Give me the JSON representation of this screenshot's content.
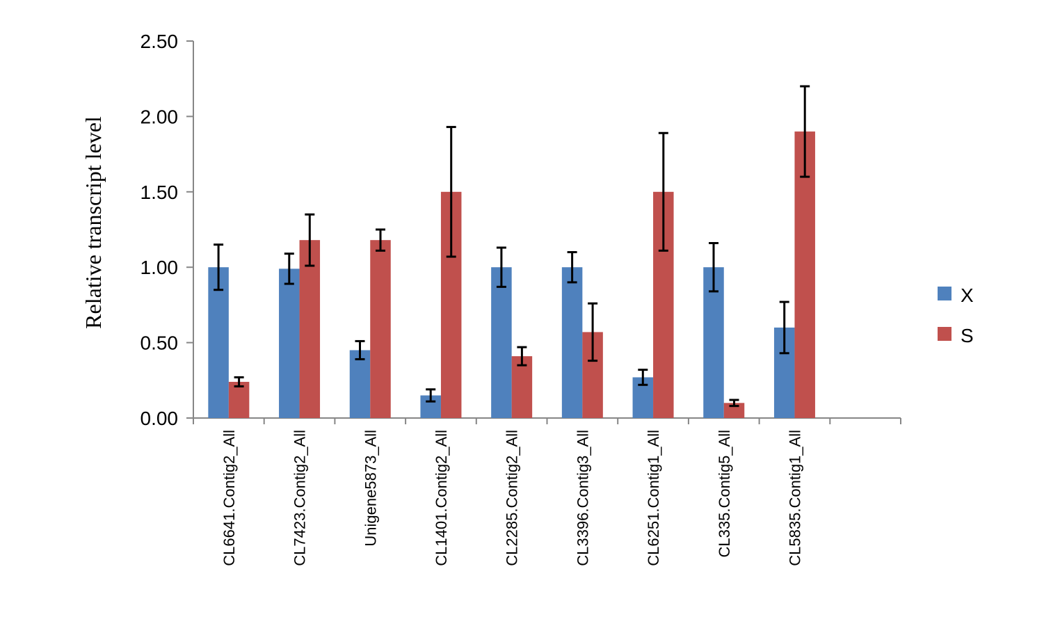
{
  "chart_data": {
    "type": "bar",
    "title": "",
    "xlabel": "",
    "ylabel": "Relative transcript level",
    "ylim": [
      0,
      2.5
    ],
    "yticks": [
      "0.00",
      "0.50",
      "1.00",
      "1.50",
      "2.00",
      "2.50"
    ],
    "grid": false,
    "legend_position": "right",
    "categories": [
      "CL6641.Contig2_All",
      "CL7423.Contig2_All",
      "Unigene5873_All",
      "CL1401.Contig2_All",
      "CL2285.Contig2_All",
      "CL3396.Contig3_All",
      "CL6251.Contig1_All",
      "CL335.Contig5_All",
      "CL5835.Contig1_All"
    ],
    "series": [
      {
        "name": "X",
        "color": "#4F81BD",
        "values": [
          1.0,
          0.99,
          0.45,
          0.15,
          1.0,
          1.0,
          0.27,
          1.0,
          0.6
        ],
        "errors": [
          0.15,
          0.1,
          0.06,
          0.04,
          0.13,
          0.1,
          0.05,
          0.16,
          0.17
        ]
      },
      {
        "name": "S",
        "color": "#C0504D",
        "values": [
          0.24,
          1.18,
          1.18,
          1.5,
          0.41,
          0.57,
          1.5,
          0.1,
          1.9
        ],
        "errors": [
          0.03,
          0.17,
          0.07,
          0.43,
          0.06,
          0.19,
          0.39,
          0.02,
          0.3
        ]
      }
    ]
  }
}
